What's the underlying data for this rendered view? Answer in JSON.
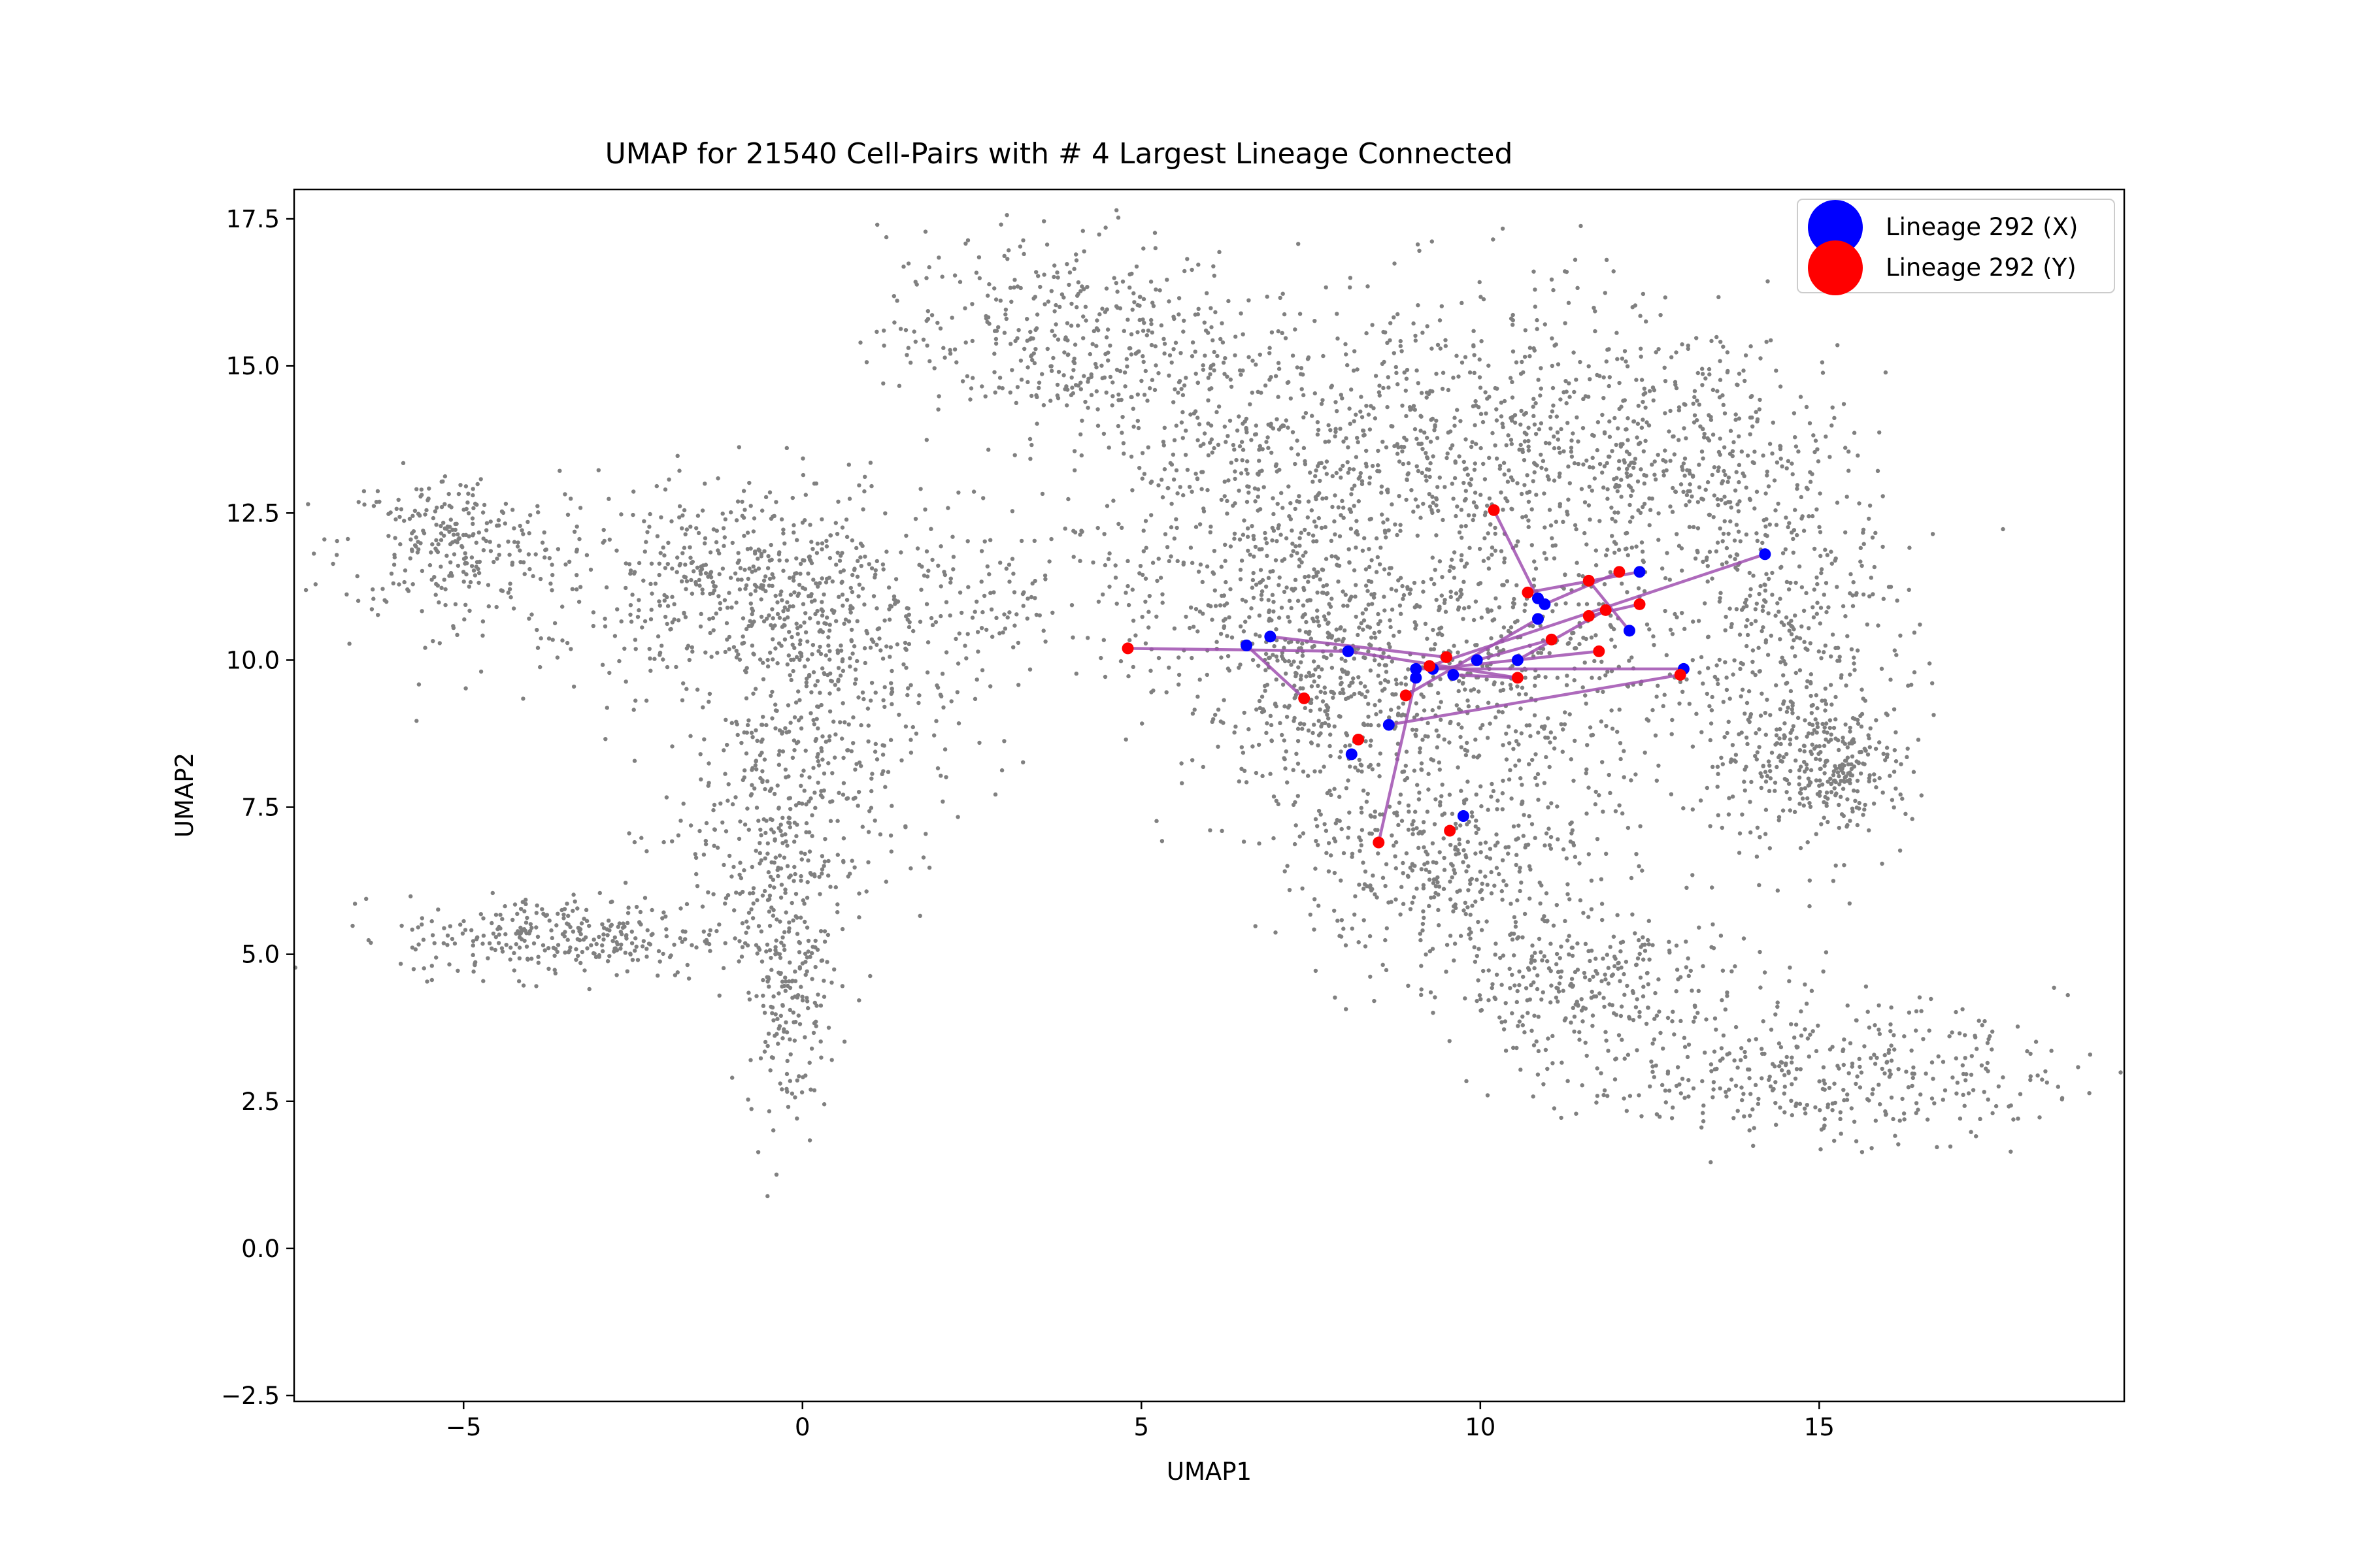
{
  "chart_data": {
    "type": "scatter",
    "title": "UMAP for 21540 Cell-Pairs with # 4 Largest Lineage Connected",
    "xlabel": "UMAP1",
    "ylabel": "UMAP2",
    "xlim": [
      -7.5,
      19.5
    ],
    "ylim": [
      -2.6,
      18.0
    ],
    "xticks": [
      -5,
      0,
      5,
      10,
      15
    ],
    "xtick_labels": [
      "−5",
      "0",
      "5",
      "10",
      "15"
    ],
    "yticks": [
      -2.5,
      0.0,
      2.5,
      5.0,
      7.5,
      10.0,
      12.5,
      15.0,
      17.5
    ],
    "ytick_labels": [
      "−2.5",
      "0.0",
      "2.5",
      "5.0",
      "7.5",
      "10.0",
      "12.5",
      "15.0",
      "17.5"
    ],
    "grid": false,
    "legend_position": "top-right",
    "background_series": {
      "color": "#808080",
      "description_regions": [
        {
          "cx": 0.2,
          "cy": 11.0,
          "sx": 2.6,
          "sy": 0.8,
          "n": 500
        },
        {
          "cx": -5.2,
          "cy": 12.0,
          "sx": 0.8,
          "sy": 0.6,
          "n": 250
        },
        {
          "cx": -1.0,
          "cy": 11.5,
          "sx": 1.2,
          "sy": 0.9,
          "n": 250
        },
        {
          "cx": 0.5,
          "cy": 9.0,
          "sx": 0.9,
          "sy": 1.2,
          "n": 250
        },
        {
          "cx": -0.5,
          "cy": 7.0,
          "sx": 0.8,
          "sy": 1.3,
          "n": 300
        },
        {
          "cx": -3.5,
          "cy": 5.3,
          "sx": 1.2,
          "sy": 0.35,
          "n": 300
        },
        {
          "cx": -0.2,
          "cy": 4.5,
          "sx": 0.3,
          "sy": 1.2,
          "n": 200
        },
        {
          "cx": 3.8,
          "cy": 15.5,
          "sx": 1.3,
          "sy": 0.9,
          "n": 400
        },
        {
          "cx": 6.5,
          "cy": 13.0,
          "sx": 1.0,
          "sy": 1.5,
          "n": 400
        },
        {
          "cx": 10.0,
          "cy": 13.5,
          "sx": 1.8,
          "sy": 1.4,
          "n": 800
        },
        {
          "cx": 13.5,
          "cy": 13.5,
          "sx": 1.0,
          "sy": 1.0,
          "n": 300
        },
        {
          "cx": 14.5,
          "cy": 10.0,
          "sx": 0.9,
          "sy": 1.6,
          "n": 400
        },
        {
          "cx": 15.2,
          "cy": 8.2,
          "sx": 0.6,
          "sy": 0.5,
          "n": 250
        },
        {
          "cx": 9.5,
          "cy": 9.5,
          "sx": 2.0,
          "sy": 1.3,
          "n": 800
        },
        {
          "cx": 9.5,
          "cy": 6.5,
          "sx": 1.1,
          "sy": 0.8,
          "n": 350
        },
        {
          "cx": 11.5,
          "cy": 4.5,
          "sx": 1.3,
          "sy": 0.6,
          "n": 300
        },
        {
          "cx": 15.0,
          "cy": 3.0,
          "sx": 1.8,
          "sy": 0.6,
          "n": 400
        },
        {
          "cx": 7.5,
          "cy": 10.0,
          "sx": 0.8,
          "sy": 1.0,
          "n": 250
        }
      ]
    },
    "lineage_x": {
      "name": "Lineage 292 (X)",
      "color": "#0000ff",
      "x": [
        6.55,
        6.9,
        8.05,
        9.05,
        9.3,
        9.6,
        9.95,
        10.55,
        10.85,
        10.95,
        12.2,
        12.35,
        13.0,
        14.2,
        8.1,
        8.65,
        9.05,
        9.75,
        10.85
      ],
      "y": [
        10.25,
        10.4,
        10.15,
        9.85,
        9.85,
        9.75,
        10.0,
        10.0,
        10.7,
        10.95,
        10.5,
        11.5,
        9.85,
        11.8,
        8.4,
        8.9,
        9.7,
        7.35,
        11.05
      ]
    },
    "lineage_y": {
      "name": "Lineage 292 (Y)",
      "color": "#ff0000",
      "x": [
        4.8,
        7.4,
        8.2,
        8.5,
        8.9,
        9.25,
        9.5,
        9.55,
        10.2,
        10.55,
        10.7,
        11.05,
        11.6,
        11.6,
        11.75,
        11.85,
        12.05,
        12.35,
        12.95
      ],
      "y": [
        10.2,
        9.35,
        8.65,
        6.9,
        9.4,
        9.9,
        10.05,
        7.1,
        12.55,
        9.7,
        11.15,
        10.35,
        11.35,
        10.75,
        10.15,
        10.85,
        11.5,
        10.95,
        9.75
      ]
    },
    "connections": {
      "color": "#a050b0",
      "pairs": [
        [
          [
            4.8,
            10.2
          ],
          [
            8.05,
            10.15
          ]
        ],
        [
          [
            6.55,
            10.25
          ],
          [
            7.4,
            9.35
          ]
        ],
        [
          [
            6.9,
            10.4
          ],
          [
            9.5,
            10.05
          ]
        ],
        [
          [
            8.05,
            10.15
          ],
          [
            10.55,
            9.7
          ]
        ],
        [
          [
            8.5,
            6.9
          ],
          [
            9.05,
            9.7
          ]
        ],
        [
          [
            8.65,
            8.9
          ],
          [
            12.95,
            9.75
          ]
        ],
        [
          [
            8.9,
            9.4
          ],
          [
            10.85,
            10.7
          ]
        ],
        [
          [
            9.05,
            9.85
          ],
          [
            13.0,
            9.85
          ]
        ],
        [
          [
            9.3,
            9.85
          ],
          [
            11.75,
            10.15
          ]
        ],
        [
          [
            9.25,
            9.9
          ],
          [
            14.2,
            11.8
          ]
        ],
        [
          [
            9.95,
            10.0
          ],
          [
            11.05,
            10.35
          ]
        ],
        [
          [
            10.2,
            12.55
          ],
          [
            10.85,
            11.05
          ]
        ],
        [
          [
            10.7,
            11.15
          ],
          [
            12.35,
            11.5
          ]
        ],
        [
          [
            11.6,
            11.35
          ],
          [
            12.2,
            10.5
          ]
        ],
        [
          [
            10.95,
            10.95
          ],
          [
            12.05,
            11.5
          ]
        ],
        [
          [
            11.6,
            10.75
          ],
          [
            12.35,
            10.95
          ]
        ],
        [
          [
            10.55,
            10.0
          ],
          [
            11.85,
            10.85
          ]
        ],
        [
          [
            9.6,
            9.75
          ],
          [
            10.55,
            9.7
          ]
        ]
      ]
    }
  }
}
